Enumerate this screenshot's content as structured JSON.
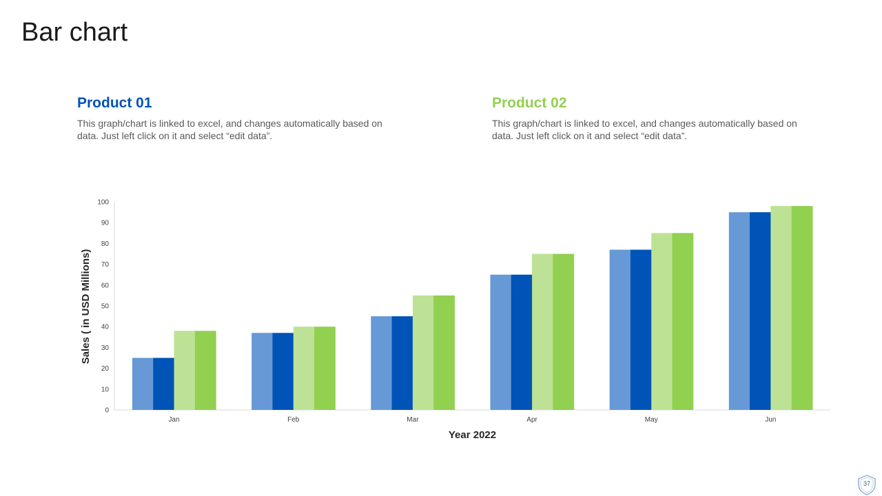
{
  "slide": {
    "title": "Bar chart",
    "page_number": "37"
  },
  "products": [
    {
      "heading": "Product 01",
      "description": "This graph/chart is linked to excel, and changes automatically based on data. Just left click on it and select “edit data”.",
      "color": "#0053b7"
    },
    {
      "heading": "Product 02",
      "description": "This graph/chart is linked to excel, and changes automatically based on data. Just left click on it and select “edit data”.",
      "color": "#92d050"
    }
  ],
  "chart_data": {
    "type": "bar",
    "categories": [
      "Jan",
      "Feb",
      "Mar",
      "Apr",
      "May",
      "Jun"
    ],
    "series": [
      {
        "values": [
          25,
          37,
          45,
          65,
          77,
          95
        ],
        "color": "#6699d6"
      },
      {
        "values": [
          25,
          37,
          45,
          65,
          77,
          95
        ],
        "color": "#0053b7"
      },
      {
        "values": [
          38,
          40,
          55,
          75,
          85,
          98
        ],
        "color": "#bde295"
      },
      {
        "values": [
          38,
          40,
          55,
          75,
          85,
          98
        ],
        "color": "#92d050"
      }
    ],
    "xlabel": "Year 2022",
    "ylabel": "Sales ( in USD Millions)",
    "ylim": [
      0,
      100
    ],
    "yticks": [
      "0",
      "10",
      "20",
      "30",
      "40",
      "50",
      "60",
      "70",
      "80",
      "90",
      "100"
    ],
    "grid": false,
    "legend": "none"
  }
}
